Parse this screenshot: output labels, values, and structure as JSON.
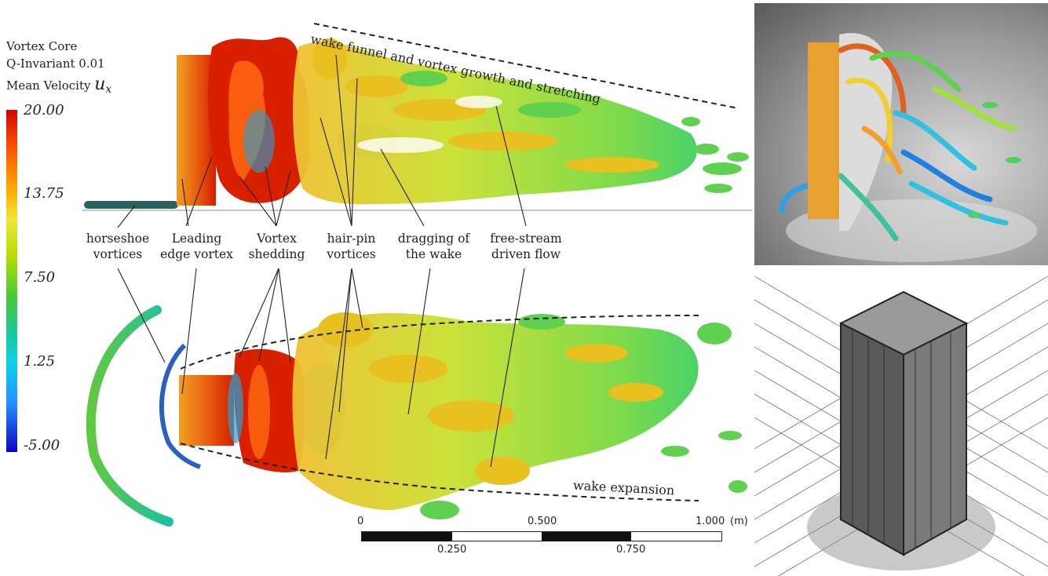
{
  "legend": {
    "title_lines": [
      "Vortex Core",
      "Q-Invariant 0.01",
      "Mean Velocity"
    ],
    "symbol": "u",
    "symbol_sub": "x",
    "ticks": [
      "20.00",
      "13.75",
      "7.50",
      "1.25",
      "-5.00"
    ]
  },
  "labels": {
    "horseshoe": [
      "horseshoe",
      "vortices"
    ],
    "leading": [
      "Leading",
      "edge vortex"
    ],
    "shedding": [
      "Vortex",
      "shedding"
    ],
    "hairpin": [
      "hair-pin",
      "vortices"
    ],
    "dragging": [
      "dragging of",
      "the wake"
    ],
    "freestream": [
      "free-stream",
      "driven flow"
    ],
    "wake_funnel": "wake funnel and vortex growth and stretching",
    "wake_expansion": "wake expansion"
  },
  "scale_bar": {
    "top_labels": [
      "0",
      "0.500",
      "1.000"
    ],
    "unit": "(m)",
    "bottom_labels": [
      "0.250",
      "0.750"
    ]
  },
  "colors": {
    "high": "#d50000",
    "mid_high": "#f0e43a",
    "mid": "#45c838",
    "mid_low": "#10d0e8",
    "low": "#1000c8"
  }
}
